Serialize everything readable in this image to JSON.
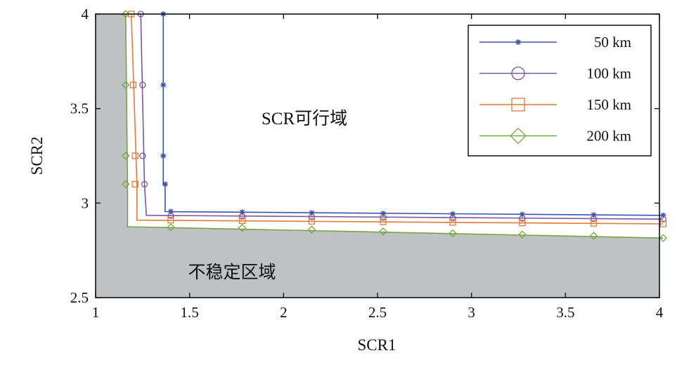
{
  "chart_data": {
    "type": "line",
    "xlabel": "SCR1",
    "ylabel": "SCR2",
    "xlim": [
      1,
      4
    ],
    "ylim": [
      2.5,
      4
    ],
    "x_ticks": [
      "1",
      "1.5",
      "2",
      "2.5",
      "3",
      "3.5",
      "4"
    ],
    "y_ticks": [
      "2.5",
      "3",
      "3.5",
      "4"
    ],
    "grid": false,
    "legend_position": "top-right",
    "regions": {
      "feasible_label": "SCR可行域",
      "unstable_label": "不稳定区域",
      "unstable_color": "#c0c1c3"
    },
    "series": [
      {
        "name": "50 km",
        "color": "#3a55a6",
        "marker": "asterisk",
        "line": [
          [
            1.36,
            4
          ],
          [
            1.36,
            3.1
          ],
          [
            1.37,
            3.1
          ],
          [
            1.37,
            2.955
          ],
          [
            4.02,
            2.935
          ]
        ],
        "markers": [
          [
            1.36,
            4
          ],
          [
            1.36,
            3.625
          ],
          [
            1.36,
            3.25
          ],
          [
            1.37,
            3.1
          ],
          [
            1.4,
            2.955
          ],
          [
            1.78,
            2.952
          ],
          [
            2.15,
            2.948
          ],
          [
            2.53,
            2.945
          ],
          [
            2.9,
            2.942
          ],
          [
            3.27,
            2.94
          ],
          [
            3.65,
            2.937
          ],
          [
            4.02,
            2.935
          ]
        ]
      },
      {
        "name": "100 km",
        "color": "#7a55a0",
        "marker": "circle",
        "line": [
          [
            1.24,
            4
          ],
          [
            1.26,
            3.1
          ],
          [
            1.27,
            2.935
          ],
          [
            4.02,
            2.915
          ]
        ],
        "markers": [
          [
            1.24,
            4
          ],
          [
            1.25,
            3.625
          ],
          [
            1.25,
            3.25
          ],
          [
            1.26,
            3.1
          ],
          [
            1.4,
            2.933
          ],
          [
            1.78,
            2.93
          ],
          [
            2.15,
            2.927
          ],
          [
            2.53,
            2.924
          ],
          [
            2.9,
            2.921
          ],
          [
            3.27,
            2.919
          ],
          [
            3.65,
            2.917
          ],
          [
            4.02,
            2.915
          ]
        ]
      },
      {
        "name": "150 km",
        "color": "#e07a38",
        "marker": "square",
        "line": [
          [
            1.19,
            4
          ],
          [
            1.22,
            3.1
          ],
          [
            1.22,
            2.91
          ],
          [
            4.02,
            2.89
          ]
        ],
        "markers": [
          [
            1.19,
            4
          ],
          [
            1.2,
            3.625
          ],
          [
            1.21,
            3.25
          ],
          [
            1.21,
            3.1
          ],
          [
            1.4,
            2.91
          ],
          [
            1.78,
            2.907
          ],
          [
            2.15,
            2.904
          ],
          [
            2.53,
            2.901
          ],
          [
            2.9,
            2.898
          ],
          [
            3.27,
            2.895
          ],
          [
            3.65,
            2.893
          ],
          [
            4.02,
            2.89
          ]
        ]
      },
      {
        "name": "200 km",
        "color": "#76a543",
        "marker": "diamond",
        "line": [
          [
            1.16,
            4
          ],
          [
            1.17,
            3.1
          ],
          [
            1.17,
            2.875
          ],
          [
            4.02,
            2.815
          ]
        ],
        "markers": [
          [
            1.16,
            4
          ],
          [
            1.16,
            3.625
          ],
          [
            1.16,
            3.25
          ],
          [
            1.16,
            3.1
          ],
          [
            1.4,
            2.872
          ],
          [
            1.78,
            2.869
          ],
          [
            2.15,
            2.86
          ],
          [
            2.53,
            2.85
          ],
          [
            2.9,
            2.84
          ],
          [
            3.27,
            2.833
          ],
          [
            3.65,
            2.827
          ],
          [
            4.02,
            2.815
          ]
        ]
      }
    ]
  }
}
